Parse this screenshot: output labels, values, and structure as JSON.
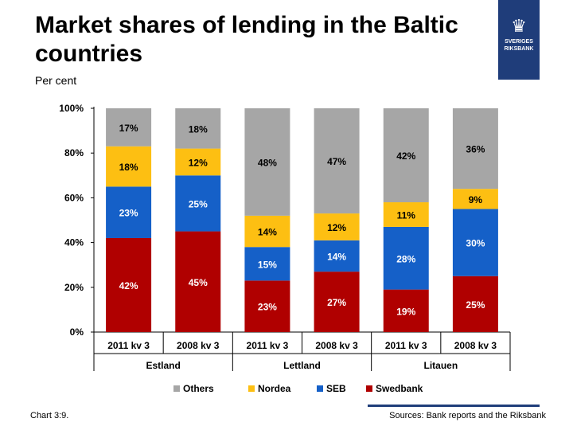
{
  "slide": {
    "title": "Market shares of lending in the Baltic countries",
    "subtitle": "Per cent",
    "chart_number": "Chart 3:9.",
    "source": "Sources: Bank reports and the Riksbank",
    "logo_text": [
      "SVERIGES",
      "RIKSBANK"
    ]
  },
  "chart_data": {
    "type": "bar",
    "stacked": true,
    "categories": [
      "2011 kv 3",
      "2008 kv 3",
      "2011 kv 3",
      "2008 kv 3",
      "2011 kv 3",
      "2008 kv 3"
    ],
    "groups": [
      {
        "label": "Estland",
        "categories": [
          0,
          1
        ]
      },
      {
        "label": "Lettland",
        "categories": [
          2,
          3
        ]
      },
      {
        "label": "Litauen",
        "categories": [
          4,
          5
        ]
      }
    ],
    "series": [
      {
        "name": "Swedbank",
        "color": "#b00000",
        "label_color": "#ffffff",
        "values": [
          42,
          45,
          23,
          27,
          19,
          25
        ]
      },
      {
        "name": "SEB",
        "color": "#1560c8",
        "label_color": "#ffffff",
        "values": [
          23,
          25,
          15,
          14,
          28,
          30
        ]
      },
      {
        "name": "Nordea",
        "color": "#fdbf12",
        "label_color": "#000000",
        "values": [
          18,
          12,
          14,
          12,
          11,
          9
        ]
      },
      {
        "name": "Others",
        "color": "#a6a6a6",
        "label_color": "#000000",
        "values": [
          17,
          18,
          48,
          47,
          42,
          36
        ]
      }
    ],
    "legend_order": [
      "Others",
      "Nordea",
      "SEB",
      "Swedbank"
    ],
    "legend_position": "bottom",
    "ylim": [
      0,
      100
    ],
    "yticks": [
      "0%",
      "20%",
      "40%",
      "60%",
      "80%",
      "100%"
    ],
    "grid": false
  }
}
